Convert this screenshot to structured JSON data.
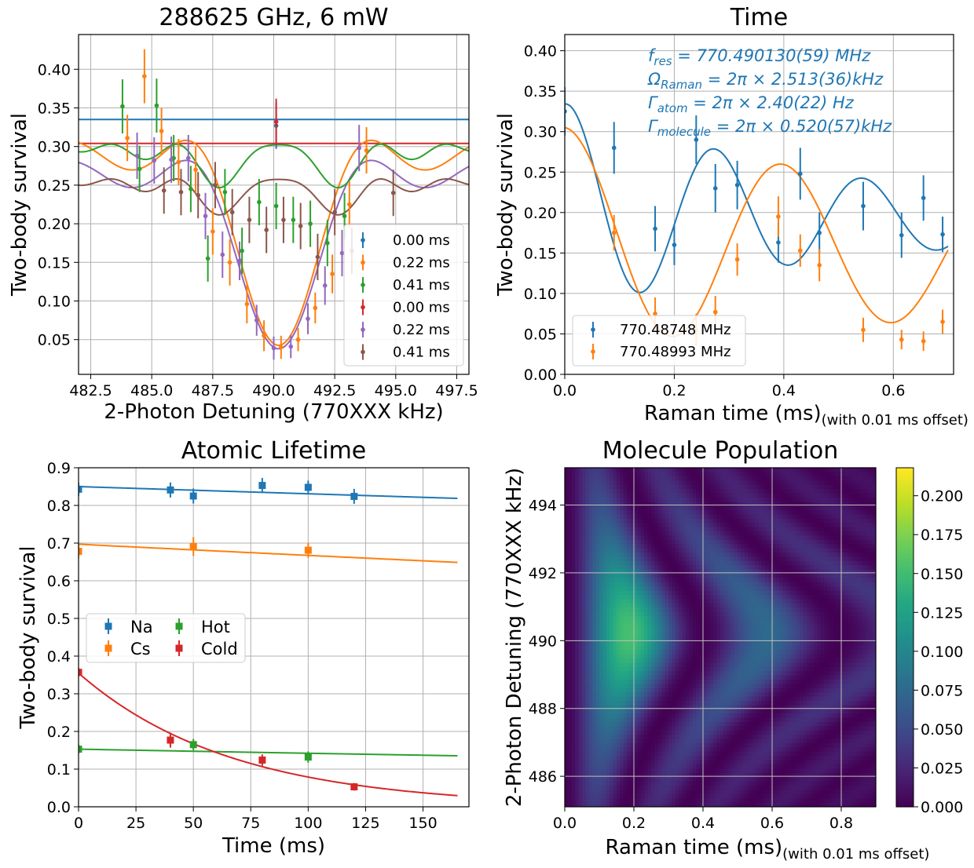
{
  "chart_data": [
    {
      "type": "scatter",
      "title": "288625 GHz, 6 mW",
      "xlabel": "2-Photon Detuning (770XXX kHz)",
      "ylabel": "Two-body survival",
      "xlim": [
        482,
        498
      ],
      "ylim": [
        0.005,
        0.445
      ],
      "xticks": [
        "482.5",
        "485.0",
        "487.5",
        "490.0",
        "492.5",
        "495.0",
        "497.5"
      ],
      "yticks": [
        "0.05",
        "0.10",
        "0.15",
        "0.20",
        "0.25",
        "0.30",
        "0.35",
        "0.40"
      ],
      "grid": true,
      "legend_position": "bottom-right",
      "hlines": [
        {
          "y": 0.335,
          "color": "#1f77b4"
        },
        {
          "y": 0.304,
          "color": "#d62728"
        }
      ],
      "fits": [
        {
          "color": "#ff7f0e",
          "model": "raman",
          "base": 0.308,
          "depth": 0.272,
          "center": 490.2,
          "omega": 2.5,
          "tau": 0.22
        },
        {
          "color": "#9467bd",
          "model": "raman",
          "base": 0.282,
          "depth": 0.25,
          "center": 490.2,
          "omega": 2.5,
          "tau": 0.22
        },
        {
          "color": "#2ca02c",
          "model": "raman",
          "base": 0.303,
          "depth": 0.115,
          "center": 490.2,
          "omega": 2.5,
          "tau": 0.41
        },
        {
          "color": "#8c564b",
          "model": "raman",
          "base": 0.258,
          "depth": 0.095,
          "center": 490.2,
          "omega": 2.5,
          "tau": 0.41
        }
      ],
      "series": [
        {
          "name": "0.00 ms",
          "color": "#1f77b4",
          "x": [
            490.1
          ],
          "y": [
            0.327
          ],
          "err": [
            0.03
          ]
        },
        {
          "name": "0.22 ms",
          "color": "#ff7f0e",
          "x": [
            484.0,
            484.7,
            485.4,
            486.1,
            486.8,
            487.5,
            488.2,
            488.9,
            489.6,
            490.3,
            491.0,
            491.7,
            492.4,
            493.1,
            493.8
          ],
          "y": [
            0.311,
            0.391,
            0.32,
            0.28,
            0.27,
            0.19,
            0.15,
            0.096,
            0.055,
            0.04,
            0.05,
            0.091,
            0.135,
            0.225,
            0.295
          ],
          "err": [
            0.03,
            0.035,
            0.03,
            0.03,
            0.03,
            0.03,
            0.03,
            0.025,
            0.02,
            0.015,
            0.015,
            0.02,
            0.025,
            0.03,
            0.03
          ]
        },
        {
          "name": "0.41 ms",
          "color": "#2ca02c",
          "x": [
            483.8,
            484.5,
            485.2,
            485.9,
            486.6,
            487.3,
            488.0,
            488.7,
            489.4,
            490.1,
            490.8,
            491.5,
            492.2,
            492.9
          ],
          "y": [
            0.352,
            0.271,
            0.353,
            0.285,
            0.245,
            0.155,
            0.241,
            0.165,
            0.228,
            0.223,
            0.205,
            0.2,
            0.175,
            0.21
          ],
          "err": [
            0.035,
            0.03,
            0.035,
            0.03,
            0.03,
            0.03,
            0.03,
            0.03,
            0.03,
            0.03,
            0.03,
            0.03,
            0.03,
            0.03
          ]
        },
        {
          "name": "0.00 ms",
          "color": "#d62728",
          "x": [
            490.1
          ],
          "y": [
            0.332
          ],
          "err": [
            0.03
          ]
        },
        {
          "name": "0.22 ms",
          "color": "#9467bd",
          "x": [
            484.4,
            485.1,
            485.8,
            486.5,
            487.2,
            487.9,
            488.6,
            489.3,
            490.0,
            490.7,
            491.4,
            492.1,
            492.8,
            493.5
          ],
          "y": [
            0.288,
            0.282,
            0.283,
            0.285,
            0.21,
            0.16,
            0.152,
            0.075,
            0.039,
            0.041,
            0.077,
            0.12,
            0.162,
            0.298
          ],
          "err": [
            0.03,
            0.03,
            0.03,
            0.03,
            0.03,
            0.03,
            0.025,
            0.02,
            0.015,
            0.015,
            0.02,
            0.025,
            0.03,
            0.03
          ]
        },
        {
          "name": "0.41 ms",
          "color": "#8c564b",
          "x": [
            485.5,
            486.2,
            486.9,
            487.6,
            488.3,
            489.0,
            489.7,
            490.4,
            491.1,
            491.8,
            492.5,
            493.2,
            494.9
          ],
          "y": [
            0.243,
            0.241,
            0.237,
            0.25,
            0.215,
            0.205,
            0.192,
            0.205,
            0.197,
            0.157,
            0.215,
            0.165,
            0.24
          ],
          "err": [
            0.03,
            0.03,
            0.03,
            0.03,
            0.03,
            0.03,
            0.03,
            0.03,
            0.03,
            0.03,
            0.03,
            0.03,
            0.03
          ]
        }
      ]
    },
    {
      "type": "scatter",
      "title": "Time",
      "xlabel": "Raman time (ms)",
      "xlabel_sub": "(with 0.01 ms offset)",
      "ylabel": "Two-body survival",
      "xlim": [
        0,
        0.71
      ],
      "ylim": [
        0,
        0.42
      ],
      "xticks": [
        "0.0",
        "0.2",
        "0.4",
        "0.6"
      ],
      "yticks": [
        "0.00",
        "0.05",
        "0.10",
        "0.15",
        "0.20",
        "0.25",
        "0.30",
        "0.35",
        "0.40"
      ],
      "grid": true,
      "legend_position": "bottom-left",
      "annotations": [
        "f_res = 770.490130(59) MHz",
        "Ω_Raman = 2π × 2.513(36)kHz",
        "Γ_atom = 2π × 2.40(22) Hz",
        "Γ_molecule = 2π × 0.520(57)kHz"
      ],
      "fits": [
        {
          "color": "#1f77b4",
          "model": "rabi",
          "y0": 0.335,
          "floor": 0.165,
          "amp": 0.24,
          "f": 3.65,
          "decay": 0.5,
          "offset_target": 0.335
        },
        {
          "color": "#ff7f0e",
          "model": "rabi",
          "y0": 0.305,
          "floor": 0.035,
          "amp": 0.27,
          "f": 2.513,
          "decay": 0.75
        }
      ],
      "series": [
        {
          "name": "770.48748 MHz",
          "color": "#1f77b4",
          "x": [
            0.0,
            0.09,
            0.165,
            0.2,
            0.24,
            0.275,
            0.315,
            0.39,
            0.43,
            0.465,
            0.545,
            0.615,
            0.655,
            0.69
          ],
          "y": [
            0.325,
            0.28,
            0.18,
            0.16,
            0.29,
            0.23,
            0.234,
            0.163,
            0.248,
            0.175,
            0.208,
            0.172,
            0.218,
            0.173
          ],
          "err": [
            0.03,
            0.032,
            0.028,
            0.025,
            0.03,
            0.03,
            0.03,
            0.025,
            0.032,
            0.025,
            0.03,
            0.028,
            0.028,
            0.022
          ]
        },
        {
          "name": "770.48993 MHz",
          "color": "#ff7f0e",
          "x": [
            0.09,
            0.165,
            0.24,
            0.275,
            0.315,
            0.39,
            0.43,
            0.465,
            0.545,
            0.615,
            0.655,
            0.69
          ],
          "y": [
            0.175,
            0.075,
            0.055,
            0.077,
            0.142,
            0.195,
            0.153,
            0.135,
            0.055,
            0.043,
            0.041,
            0.065
          ],
          "err": [
            0.022,
            0.02,
            0.02,
            0.02,
            0.02,
            0.025,
            0.02,
            0.02,
            0.015,
            0.012,
            0.012,
            0.015
          ]
        }
      ]
    },
    {
      "type": "scatter",
      "title": "Atomic Lifetime",
      "xlabel": "Time (ms)",
      "ylabel": "Two-body survival",
      "xlim": [
        0,
        170
      ],
      "ylim": [
        0,
        0.9
      ],
      "xticks": [
        "0",
        "25",
        "50",
        "75",
        "100",
        "125",
        "150"
      ],
      "yticks": [
        "0.0",
        "0.1",
        "0.2",
        "0.3",
        "0.4",
        "0.5",
        "0.6",
        "0.7",
        "0.8",
        "0.9"
      ],
      "grid": true,
      "legend_position": "center-left",
      "fits": [
        {
          "color": "#1f77b4",
          "model": "exp",
          "a": 0.85,
          "tau": 4400,
          "xmax": 165
        },
        {
          "color": "#ff7f0e",
          "model": "exp",
          "a": 0.697,
          "tau": 2300,
          "xmax": 165
        },
        {
          "color": "#2ca02c",
          "model": "exp",
          "a": 0.153,
          "tau": 1350,
          "xmax": 165
        },
        {
          "color": "#d62728",
          "model": "exp",
          "a": 0.355,
          "tau": 66.5,
          "xmax": 165
        }
      ],
      "series": [
        {
          "name": "Na",
          "color": "#1f77b4",
          "x": [
            0,
            40,
            50,
            80,
            100,
            120
          ],
          "y": [
            0.843,
            0.841,
            0.825,
            0.853,
            0.848,
            0.824
          ],
          "err": [
            0.018,
            0.02,
            0.02,
            0.02,
            0.018,
            0.02
          ]
        },
        {
          "name": "Cs",
          "color": "#ff7f0e",
          "x": [
            0,
            50,
            100
          ],
          "y": [
            0.678,
            0.691,
            0.681
          ],
          "err": [
            0.018,
            0.025,
            0.02
          ]
        },
        {
          "name": "Hot",
          "color": "#2ca02c",
          "x": [
            0,
            50,
            100
          ],
          "y": [
            0.153,
            0.165,
            0.132
          ],
          "err": [
            0.012,
            0.015,
            0.015
          ]
        },
        {
          "name": "Cold",
          "color": "#d62728",
          "x": [
            0,
            40,
            80,
            120
          ],
          "y": [
            0.357,
            0.177,
            0.124,
            0.053
          ],
          "err": [
            0.012,
            0.02,
            0.015,
            0.01
          ]
        }
      ]
    },
    {
      "type": "heatmap",
      "title": "Molecule Population",
      "xlabel": "Raman time (ms)",
      "xlabel_sub": "(with 0.01 ms offset)",
      "ylabel": "2-Photon Detuning (770XXX kHz)",
      "xlim": [
        0,
        0.9
      ],
      "ylim": [
        485.1,
        495.1
      ],
      "xticks": [
        "0.0",
        "0.2",
        "0.4",
        "0.6",
        "0.8"
      ],
      "yticks": [
        "486",
        "488",
        "490",
        "492",
        "494"
      ],
      "grid": true,
      "colormap": "viridis",
      "colorbar_range": [
        0,
        0.218
      ],
      "colorbar_ticks": [
        "0.000",
        "0.025",
        "0.050",
        "0.075",
        "0.100",
        "0.125",
        "0.150",
        "0.175",
        "0.200"
      ],
      "model": {
        "center": 490.2,
        "omega_khz": 2.5,
        "decay_khz": 0.52,
        "peak": 0.218
      }
    }
  ]
}
